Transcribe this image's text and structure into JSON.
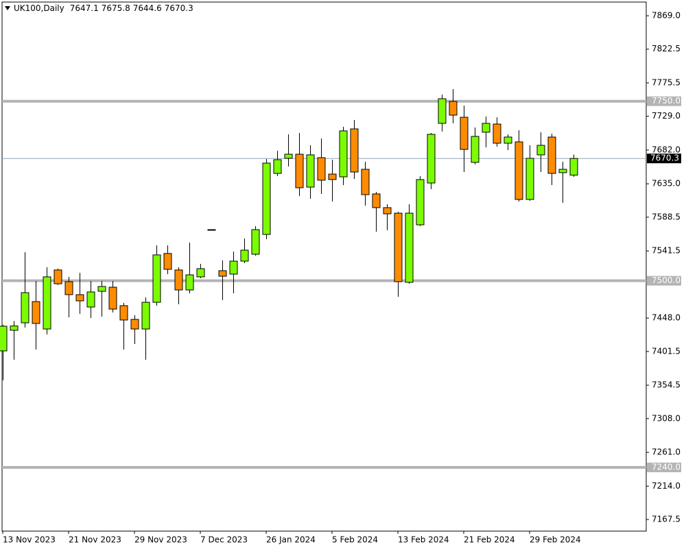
{
  "chart_data": {
    "type": "candlestick",
    "title": "UK100,Daily",
    "categories": [
      "13 Nov 2023",
      null,
      null,
      null,
      null,
      null,
      "21 Nov 2023",
      null,
      null,
      null,
      null,
      null,
      "29 Nov 2023",
      null,
      null,
      null,
      null,
      null,
      "7 Dec 2023",
      null,
      null,
      null,
      null,
      null,
      "26 Jan 2024",
      null,
      null,
      null,
      null,
      null,
      "5 Feb 2024",
      null,
      null,
      null,
      null,
      null,
      "13 Feb 2024",
      null,
      null,
      null,
      null,
      null,
      "21 Feb 2024",
      null,
      null,
      null,
      null,
      null,
      "29 Feb 2024",
      null,
      null,
      null,
      null
    ],
    "open": [
      7402.3,
      7431,
      7441.4,
      7471,
      7432.8,
      7515,
      7498.7,
      7480.6,
      7463.4,
      7485.3,
      7491,
      7465.3,
      7446.2,
      7432.8,
      7470,
      7538,
      7515,
      7487.2,
      7505.4,
      7571.2,
      7514,
      7509.2,
      7527.3,
      7536.9,
      7564.5,
      7649.5,
      7670.5,
      7676.2,
      7630.4,
      7671.4,
      7648.5,
      7644.7,
      7711.5,
      7655.2,
      7620.9,
      7601.8,
      7594.1,
      7497.8,
      7577.9,
      7636.1,
      7719.2,
      7749.7,
      7727.7,
      7664.8,
      7706.8,
      7718.2,
      7691.5,
      7693.4,
      7613.2,
      7675.3,
      7700.1,
      7650.5,
      7647.1
    ],
    "high": [
      7438.6,
      7444,
      7539.7,
      7499.7,
      7518.7,
      7516.8,
      7505.4,
      7511,
      7499.7,
      7499.7,
      7499.7,
      7469.1,
      7452,
      7476.8,
      7549.3,
      7549.3,
      7518.7,
      7553.1,
      7523.5,
      7571.2,
      7528.3,
      7540.7,
      7558.8,
      7576,
      7669.5,
      7681,
      7703.9,
      7705.8,
      7688.6,
      7698.2,
      7668.6,
      7714.4,
      7723.9,
      7665.7,
      7623.7,
      7606.5,
      7596,
      7606.5,
      7645.7,
      7705.8,
      7759.2,
      7766.9,
      7744,
      7713.4,
      7728.7,
      7727.7,
      7703.9,
      7709.6,
      7688.6,
      7706.8,
      7704.9,
      7665.7,
      7675.8
    ],
    "low": [
      7361.3,
      7390,
      7434.8,
      7404.2,
      7425.2,
      7494,
      7449,
      7453.8,
      7448.1,
      7450,
      7455.8,
      7404.2,
      7411.9,
      7390,
      7465.3,
      7509.2,
      7467.2,
      7482.5,
      7503.5,
      7571.2,
      7473,
      7482.5,
      7524.5,
      7535,
      7557.9,
      7645.7,
      7659,
      7618,
      7614.2,
      7620.9,
      7610.4,
      7633.3,
      7641.8,
      7604.6,
      7568.4,
      7570.3,
      7477.7,
      7495.8,
      7576,
      7627.5,
      7707.7,
      7719.2,
      7651.4,
      7661.9,
      7685.8,
      7686.7,
      7681.9,
      7610.4,
      7611.3,
      7651.4,
      7633.3,
      7608.5,
      7644.6
    ],
    "close": [
      7436.7,
      7437,
      7483.4,
      7440.5,
      7505.4,
      7495.8,
      7480.6,
      7472,
      7484.4,
      7492,
      7460.5,
      7445.3,
      7432.8,
      7470,
      7536,
      7515.9,
      7487.2,
      7508.2,
      7516.8,
      7571.2,
      7506.3,
      7527.3,
      7542.6,
      7571.2,
      7663.8,
      7668.6,
      7676.2,
      7629.5,
      7675.3,
      7640,
      7640.9,
      7708.7,
      7651.4,
      7619.9,
      7601.8,
      7593.2,
      7498.7,
      7594.1,
      7640.9,
      7703.9,
      7753.5,
      7730.6,
      7682.9,
      7701,
      7719.2,
      7691.5,
      7700.1,
      7613.2,
      7670.5,
      7688.6,
      7649.5,
      7655.2,
      7670.3
    ],
    "up_color": "#7cfc00",
    "down_color": "#ff8c00",
    "level_color": "#b4b4b4",
    "price_line_color": "#8fa5b5",
    "ylim": [
      7151.3,
      7888.1
    ],
    "yticks": [
      {
        "value": 7869,
        "label": "7869.0"
      },
      {
        "value": 7822.5,
        "label": "7822.5"
      },
      {
        "value": 7775.5,
        "label": "7775.5"
      },
      {
        "value": 7729,
        "label": "7729.0"
      },
      {
        "value": 7682,
        "label": "7682.0"
      },
      {
        "value": 7635,
        "label": "7635.0"
      },
      {
        "value": 7588.5,
        "label": "7588.5"
      },
      {
        "value": 7541.5,
        "label": "7541.5"
      },
      {
        "value": 7448,
        "label": "7448.0"
      },
      {
        "value": 7401.5,
        "label": "7401.5"
      },
      {
        "value": 7354.5,
        "label": "7354.5"
      },
      {
        "value": 7308,
        "label": "7308.0"
      },
      {
        "value": 7261,
        "label": "7261.0"
      },
      {
        "value": 7214,
        "label": "7214.0"
      },
      {
        "value": 7167.5,
        "label": "7167.5"
      }
    ],
    "levels": [
      {
        "value": 7750,
        "label": "7750.0"
      },
      {
        "value": 7500,
        "label": "7500.0"
      },
      {
        "value": 7240,
        "label": "7240.0"
      }
    ]
  }
}
